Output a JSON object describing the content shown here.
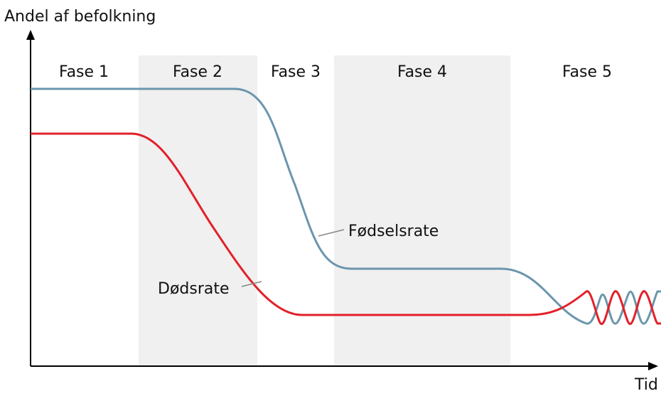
{
  "y_axis_label": "Andel af befolkning",
  "x_axis_label": "Tid",
  "phases": [
    "Fase 1",
    "Fase 2",
    "Fase 3",
    "Fase 4",
    "Fase 5"
  ],
  "curves": {
    "birth_rate": "Fødselsrate",
    "death_rate": "Dødsrate"
  }
}
